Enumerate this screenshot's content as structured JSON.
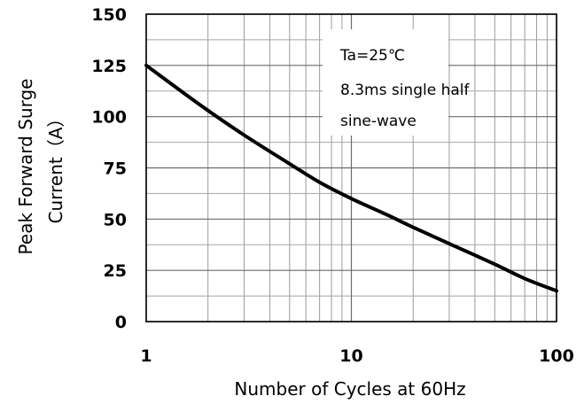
{
  "chart_data": {
    "type": "line",
    "xscale": "log",
    "xlim": [
      1,
      100
    ],
    "ylim": [
      0,
      150
    ],
    "grid": true,
    "xlabel": "Number of Cycles at 60Hz",
    "ylabel_lines": [
      "Peak Forward Surge",
      "Current（A）"
    ],
    "x_ticks": [
      1,
      10,
      100
    ],
    "y_ticks": [
      0,
      25,
      50,
      75,
      100,
      125,
      150
    ],
    "x_tick_labels": [
      "1",
      "10",
      "100"
    ],
    "y_tick_labels": [
      "0",
      "25",
      "50",
      "75",
      "100",
      "125",
      "150"
    ],
    "annotation_lines": [
      "Ta=25℃",
      "8.3ms single half",
      "sine-wave"
    ],
    "annotation_position": "top-right",
    "series": [
      {
        "color": "#000000",
        "x": [
          1,
          1.5,
          2,
          3,
          5,
          7,
          10,
          15,
          20,
          30,
          50,
          70,
          100
        ],
        "y": [
          125,
          112,
          103,
          91,
          77,
          68,
          60,
          52,
          46,
          38,
          28,
          21,
          15
        ]
      }
    ]
  }
}
